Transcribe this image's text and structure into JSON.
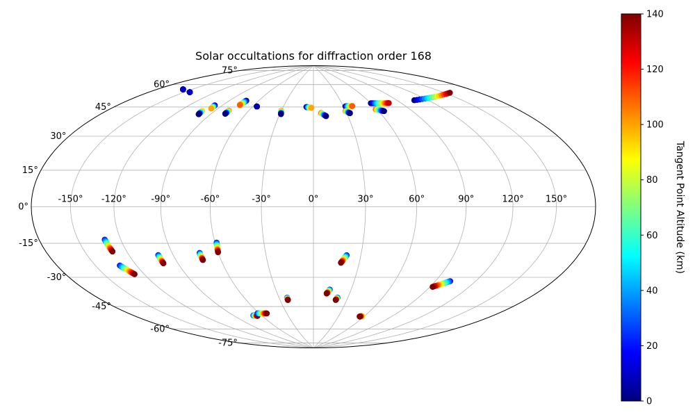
{
  "chart_data": {
    "type": "scatter",
    "projection": "hammer",
    "title": "Solar occultations for diffraction order 168",
    "grid": true,
    "x_ticks": [
      {
        "value": -150,
        "label": "-150°"
      },
      {
        "value": -120,
        "label": "-120°"
      },
      {
        "value": -90,
        "label": "-90°"
      },
      {
        "value": -60,
        "label": "-60°"
      },
      {
        "value": -30,
        "label": "-30°"
      },
      {
        "value": 0,
        "label": "0°"
      },
      {
        "value": 30,
        "label": "30°"
      },
      {
        "value": 60,
        "label": "60°"
      },
      {
        "value": 90,
        "label": "90°"
      },
      {
        "value": 120,
        "label": "120°"
      },
      {
        "value": 150,
        "label": "150°"
      }
    ],
    "y_ticks": [
      {
        "value": 75,
        "label": "75°"
      },
      {
        "value": 60,
        "label": "60°"
      },
      {
        "value": 45,
        "label": "45°"
      },
      {
        "value": 30,
        "label": "30°"
      },
      {
        "value": 15,
        "label": "15°"
      },
      {
        "value": 0,
        "label": "0°"
      },
      {
        "value": -15,
        "label": "-15°"
      },
      {
        "value": -30,
        "label": "-30°"
      },
      {
        "value": -45,
        "label": "-45°"
      },
      {
        "value": -60,
        "label": "-60°"
      },
      {
        "value": -75,
        "label": "-75°"
      }
    ],
    "colorbar": {
      "label": "Tangent Point Altitude (km)",
      "colormap": "jet",
      "range": [
        0,
        140
      ],
      "ticks": [
        0,
        20,
        40,
        60,
        80,
        100,
        120,
        140
      ],
      "colors": [
        "#00007f",
        "#0000ff",
        "#007fff",
        "#00ffff",
        "#7fff7f",
        "#ffff00",
        "#ff7f00",
        "#ff0000",
        "#7f0000"
      ]
    },
    "tracks": [
      {
        "start": [
          -158,
          60.5
        ],
        "end": [
          -158,
          60.5
        ],
        "alt_range": [
          0,
          10
        ]
      },
      {
        "start": [
          -145,
          60.5
        ],
        "end": [
          -145,
          60.5
        ],
        "alt_range": [
          0,
          10
        ]
      },
      {
        "start": [
          -97,
          57
        ],
        "end": [
          -96,
          55
        ],
        "alt_range": [
          0,
          100
        ]
      },
      {
        "start": [
          -101,
          53
        ],
        "end": [
          -100,
          51
        ],
        "alt_range": [
          100,
          0
        ]
      },
      {
        "start": [
          -73,
          62
        ],
        "end": [
          -74,
          59
        ],
        "alt_range": [
          0,
          110
        ]
      },
      {
        "start": [
          -78,
          55
        ],
        "end": [
          -78,
          53
        ],
        "alt_range": [
          110,
          0
        ]
      },
      {
        "start": [
          -56,
          59
        ],
        "end": [
          -56,
          59
        ],
        "alt_range": [
          0,
          5
        ]
      },
      {
        "start": [
          -30,
          57
        ],
        "end": [
          -29,
          55
        ],
        "alt_range": [
          110,
          0
        ]
      },
      {
        "start": [
          -7,
          60
        ],
        "end": [
          -2,
          59.5
        ],
        "alt_range": [
          0,
          100
        ]
      },
      {
        "start": [
          7,
          56
        ],
        "end": [
          11,
          54
        ],
        "alt_range": [
          110,
          0
        ]
      },
      {
        "start": [
          32,
          60
        ],
        "end": [
          39,
          60
        ],
        "alt_range": [
          0,
          110
        ]
      },
      {
        "start": [
          30,
          57
        ],
        "end": [
          33,
          55.5
        ],
        "alt_range": [
          110,
          0
        ]
      },
      {
        "start": [
          60,
          61
        ],
        "end": [
          78,
          60
        ],
        "alt_range": [
          0,
          130
        ]
      },
      {
        "start": [
          59,
          57
        ],
        "end": [
          65,
          55.5
        ],
        "alt_range": [
          110,
          0
        ]
      },
      {
        "start": [
          107,
          59.5
        ],
        "end": [
          155,
          58.5
        ],
        "alt_range": [
          0,
          140
        ]
      },
      {
        "start": [
          -131,
          -16
        ],
        "end": [
          -130,
          -22
        ],
        "alt_range": [
          20,
          140
        ]
      },
      {
        "start": [
          -132,
          -29
        ],
        "end": [
          -127,
          -34
        ],
        "alt_range": [
          20,
          140
        ]
      },
      {
        "start": [
          -100,
          -25.5
        ],
        "end": [
          -100,
          -30
        ],
        "alt_range": [
          20,
          140
        ]
      },
      {
        "start": [
          -72,
          -25.5
        ],
        "end": [
          -72,
          -29.5
        ],
        "alt_range": [
          20,
          140
        ]
      },
      {
        "start": [
          -59,
          -20
        ],
        "end": [
          -60,
          -25.5
        ],
        "alt_range": [
          20,
          140
        ]
      },
      {
        "start": [
          -69,
          -64
        ],
        "end": [
          -65,
          -64.5
        ],
        "alt_range": [
          20,
          140
        ]
      },
      {
        "start": [
          -62,
          -63
        ],
        "end": [
          -52,
          -63.5
        ],
        "alt_range": [
          20,
          140
        ]
      },
      {
        "start": [
          -23,
          -54
        ],
        "end": [
          -23,
          -55.5
        ],
        "alt_range": [
          20,
          140
        ]
      },
      {
        "start": [
          21,
          -28
        ],
        "end": [
          18,
          -32.5
        ],
        "alt_range": [
          20,
          140
        ]
      },
      {
        "start": [
          13,
          -49
        ],
        "end": [
          11,
          -51.5
        ],
        "alt_range": [
          20,
          140
        ]
      },
      {
        "start": [
          21,
          -54
        ],
        "end": [
          20,
          -55.5
        ],
        "alt_range": [
          20,
          140
        ]
      },
      {
        "start": [
          57,
          -65
        ],
        "end": [
          55,
          -65.5
        ],
        "alt_range": [
          80,
          140
        ]
      },
      {
        "start": [
          101,
          -40
        ],
        "end": [
          92,
          -44
        ],
        "alt_range": [
          20,
          140
        ]
      }
    ]
  }
}
